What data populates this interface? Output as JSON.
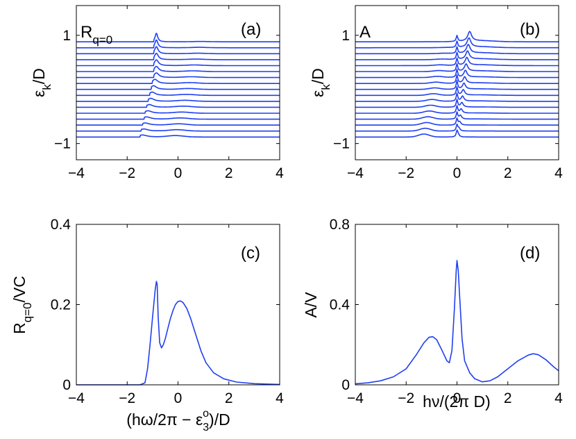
{
  "chart_data": [
    {
      "id": "a",
      "type": "line",
      "panel_label": "(a)",
      "inset_label": "R",
      "inset_label_sub": "q=0",
      "ylabel": "ε",
      "ylabel_sub": "k",
      "ylabel_suffix": "/D",
      "xlim": [
        -4,
        4
      ],
      "ylim": [
        -1.3,
        1.55
      ],
      "xticks": [
        -4,
        -2,
        0,
        2,
        4
      ],
      "xtick_labels": [
        "−4",
        "−2",
        "0",
        "2",
        "4"
      ],
      "yticks": [
        -1,
        1
      ],
      "ytick_labels": [
        "−1",
        "1"
      ],
      "offset_range": [
        -0.88,
        0.88
      ],
      "series_count": 17,
      "axis_color": "#000000",
      "line_color": "#1f3ff0"
    },
    {
      "id": "b",
      "type": "line",
      "panel_label": "(b)",
      "inset_label": "A",
      "ylabel": "ε",
      "ylabel_sub": "k",
      "ylabel_suffix": "/D",
      "xlim": [
        -4,
        4
      ],
      "ylim": [
        -1.3,
        1.55
      ],
      "xticks": [
        -4,
        -2,
        0,
        2,
        4
      ],
      "xtick_labels": [
        "−4",
        "−2",
        "0",
        "2",
        "4"
      ],
      "yticks": [
        -1,
        1
      ],
      "ytick_labels": [
        "−1",
        "1"
      ],
      "offset_range": [
        -0.88,
        0.88
      ],
      "series_count": 17,
      "axis_color": "#000000",
      "line_color": "#1f3ff0"
    },
    {
      "id": "c",
      "type": "line",
      "panel_label": "(c)",
      "ylabel": "R",
      "ylabel_sub": "q=0",
      "ylabel_suffix": "/VC",
      "xlabel_pre": "(hω/2π − ε",
      "xlabel_sub": "3",
      "xlabel_sup": "o",
      "xlabel_post": ")/D",
      "xlim": [
        -4,
        4
      ],
      "ylim": [
        0,
        0.4
      ],
      "xticks": [
        -4,
        -2,
        0,
        2,
        4
      ],
      "xtick_labels": [
        "−4",
        "−2",
        "0",
        "2",
        "4"
      ],
      "yticks": [
        0,
        0.2,
        0.4
      ],
      "ytick_labels": [
        "0",
        "0.2",
        "0.4"
      ],
      "x": [
        -4,
        -1.5,
        -1.3,
        -1.2,
        -1.1,
        -1.0,
        -0.9,
        -0.85,
        -0.82,
        -0.78,
        -0.72,
        -0.65,
        -0.58,
        -0.5,
        -0.4,
        -0.3,
        -0.2,
        -0.1,
        0,
        0.1,
        0.2,
        0.35,
        0.5,
        0.7,
        0.9,
        1.1,
        1.4,
        1.8,
        2.3,
        3.0,
        4.0
      ],
      "y": [
        0,
        0,
        0.005,
        0.04,
        0.1,
        0.17,
        0.235,
        0.258,
        0.25,
        0.17,
        0.105,
        0.092,
        0.1,
        0.115,
        0.14,
        0.165,
        0.185,
        0.2,
        0.208,
        0.209,
        0.205,
        0.19,
        0.165,
        0.125,
        0.085,
        0.055,
        0.03,
        0.015,
        0.007,
        0.003,
        0.001
      ],
      "axis_color": "#000000",
      "line_color": "#1f3ff0"
    },
    {
      "id": "d",
      "type": "line",
      "panel_label": "(d)",
      "ylabel": "A/V",
      "xlabel": "hν/(2π D)",
      "xlim": [
        -4,
        4
      ],
      "ylim": [
        0,
        0.8
      ],
      "xticks": [
        -4,
        -2,
        0,
        2,
        4
      ],
      "xtick_labels": [
        "−4",
        "−2",
        "0",
        "2",
        "4"
      ],
      "yticks": [
        0,
        0.4,
        0.8
      ],
      "ytick_labels": [
        "0",
        "0.4",
        "0.8"
      ],
      "x": [
        -4,
        -3.5,
        -3,
        -2.5,
        -2,
        -1.6,
        -1.3,
        -1.1,
        -0.95,
        -0.8,
        -0.6,
        -0.4,
        -0.3,
        -0.2,
        -0.1,
        -0.03,
        0.0,
        0.05,
        0.1,
        0.2,
        0.3,
        0.5,
        0.7,
        1.0,
        1.3,
        1.6,
        2.0,
        2.4,
        2.8,
        3.0,
        3.2,
        3.5,
        3.8,
        4.0
      ],
      "y": [
        0.005,
        0.01,
        0.02,
        0.04,
        0.08,
        0.15,
        0.21,
        0.237,
        0.24,
        0.225,
        0.175,
        0.12,
        0.11,
        0.17,
        0.38,
        0.57,
        0.62,
        0.57,
        0.45,
        0.23,
        0.12,
        0.06,
        0.03,
        0.015,
        0.02,
        0.04,
        0.08,
        0.12,
        0.148,
        0.155,
        0.15,
        0.125,
        0.09,
        0.07
      ],
      "axis_color": "#000000",
      "line_color": "#1f3ff0"
    }
  ]
}
